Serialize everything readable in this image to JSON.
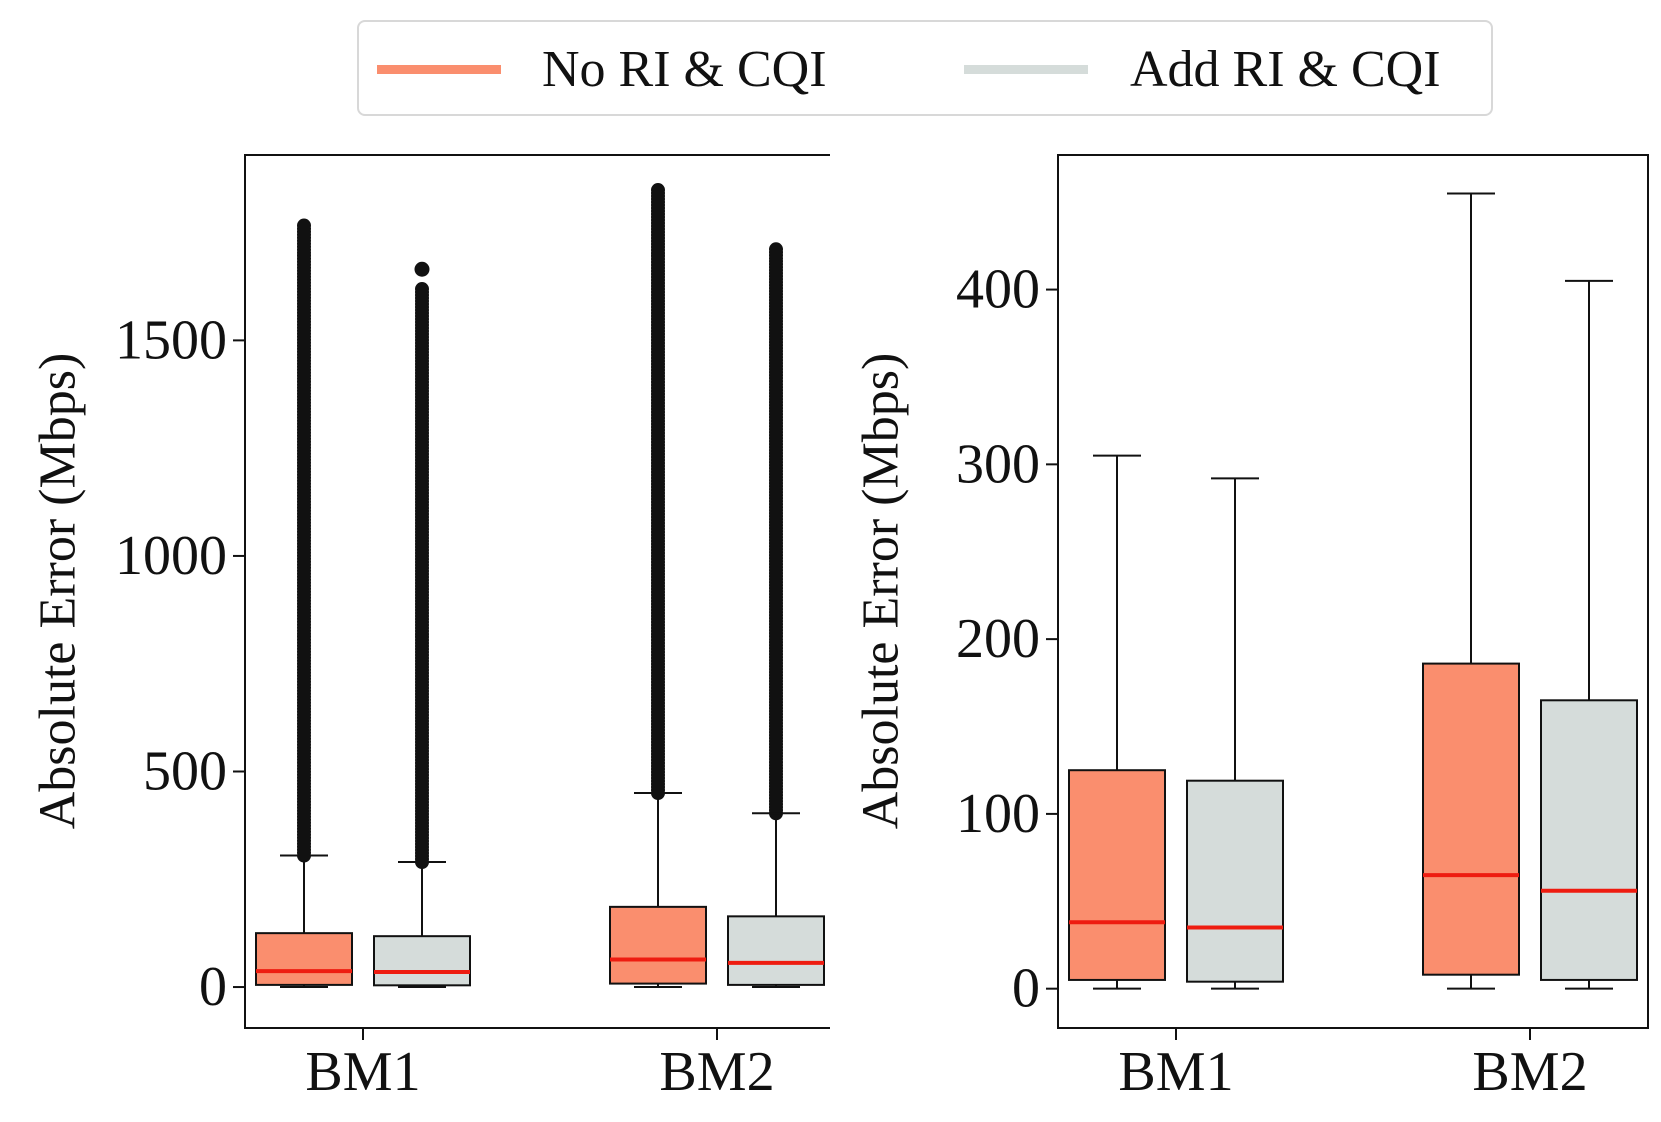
{
  "legend": {
    "items": [
      {
        "label": "No RI & CQI",
        "color": "#fa8e6e"
      },
      {
        "label": "Add RI & CQI",
        "color": "#d5dcda"
      }
    ]
  },
  "colors": {
    "median": "#ee1c10",
    "frame": "#111111",
    "outlier": "#111111"
  },
  "chart_data": [
    {
      "type": "box",
      "title": "",
      "xlabel": "",
      "ylabel": "Absolute Error (Mbps)",
      "ylim": [
        -95,
        1930
      ],
      "yticks": [
        0,
        500,
        1000,
        1500
      ],
      "categories": [
        "BM1",
        "BM2"
      ],
      "show_outliers": true,
      "series": [
        {
          "name": "No RI & CQI",
          "boxes": [
            {
              "category": "BM1",
              "whislo": 0,
              "q1": 5,
              "med": 37,
              "q3": 125,
              "whishi": 305,
              "fliers_from": 305,
              "fliers_to": 1770
            },
            {
              "category": "BM2",
              "whislo": 0,
              "q1": 8,
              "med": 64,
              "q3": 186,
              "whishi": 450,
              "fliers_from": 450,
              "fliers_to": 1850
            }
          ]
        },
        {
          "name": "Add RI & CQI",
          "boxes": [
            {
              "category": "BM1",
              "whislo": 0,
              "q1": 4,
              "med": 35,
              "q3": 118,
              "whishi": 290,
              "fliers_from": 290,
              "fliers_to": 1620,
              "extra_fliers": [
                1665
              ]
            },
            {
              "category": "BM2",
              "whislo": 0,
              "q1": 5,
              "med": 56,
              "q3": 164,
              "whishi": 403,
              "fliers_from": 403,
              "fliers_to": 1715
            }
          ]
        }
      ]
    },
    {
      "type": "box",
      "title": "",
      "xlabel": "",
      "ylabel": "Absolute Error (Mbps)",
      "ylim": [
        -22.5,
        477
      ],
      "yticks": [
        0,
        100,
        200,
        300,
        400
      ],
      "categories": [
        "BM1",
        "BM2"
      ],
      "show_outliers": false,
      "series": [
        {
          "name": "No RI & CQI",
          "boxes": [
            {
              "category": "BM1",
              "whislo": 0,
              "q1": 5,
              "med": 38,
              "q3": 125,
              "whishi": 305
            },
            {
              "category": "BM2",
              "whislo": 0,
              "q1": 8,
              "med": 65,
              "q3": 186,
              "whishi": 455
            }
          ]
        },
        {
          "name": "Add RI & CQI",
          "boxes": [
            {
              "category": "BM1",
              "whislo": 0,
              "q1": 4,
              "med": 35,
              "q3": 119,
              "whishi": 292
            },
            {
              "category": "BM2",
              "whislo": 0,
              "q1": 5,
              "med": 56,
              "q3": 165,
              "whishi": 405
            }
          ]
        }
      ]
    }
  ]
}
